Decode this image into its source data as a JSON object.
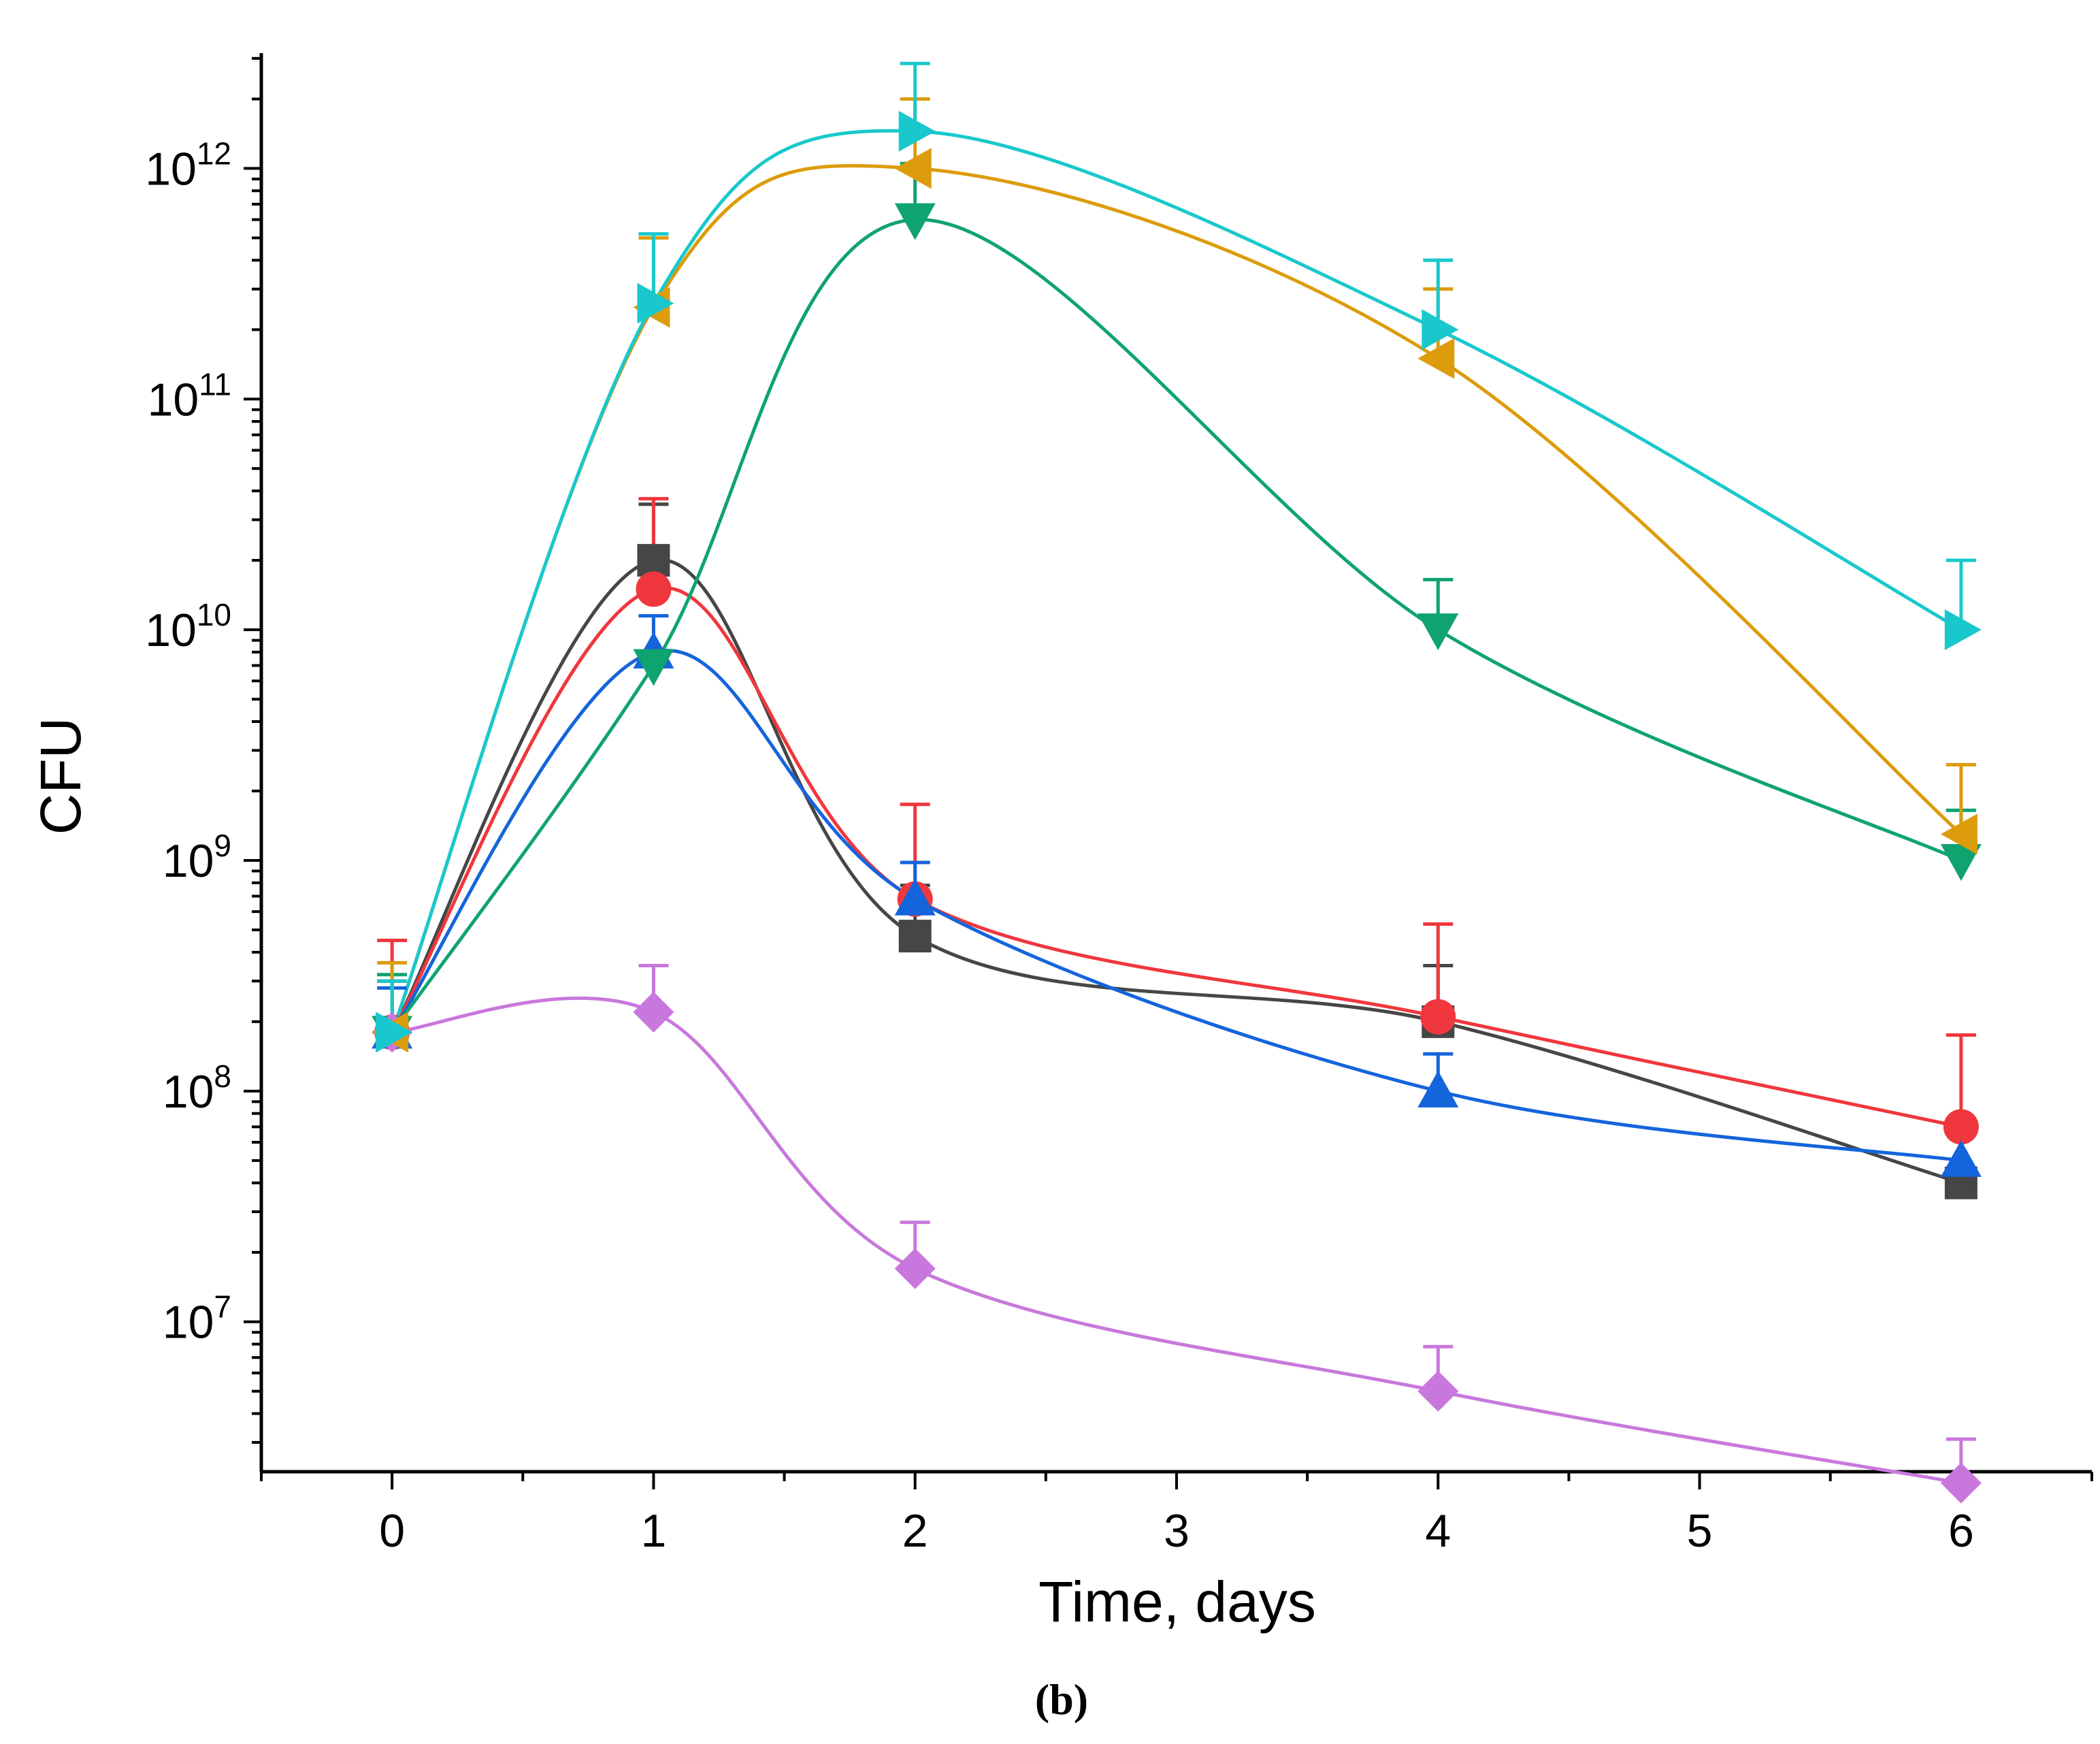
{
  "chart_data": {
    "type": "line",
    "caption": "(b)",
    "xlabel": "Time, days",
    "ylabel": "CFU",
    "xlim": [
      -0.5,
      6.5
    ],
    "ylim_log10": [
      6.35,
      12.5
    ],
    "y_scale": "log",
    "x_ticks": [
      0,
      1,
      2,
      3,
      4,
      5,
      6
    ],
    "x_tick_labels": [
      "0",
      "1",
      "2",
      "3",
      "4",
      "5",
      "6"
    ],
    "y_ticks": [
      {
        "base": "10",
        "exp": "7",
        "value": 10000000.0
      },
      {
        "base": "10",
        "exp": "8",
        "value": 100000000.0
      },
      {
        "base": "10",
        "exp": "9",
        "value": 1000000000.0
      },
      {
        "base": "10",
        "exp": "10",
        "value": 10000000000.0
      },
      {
        "base": "10",
        "exp": "11",
        "value": 100000000000.0
      },
      {
        "base": "10",
        "exp": "12",
        "value": 1000000000000.0
      }
    ],
    "grid": false,
    "x": [
      0,
      1,
      2,
      4,
      6
    ],
    "series": [
      {
        "marker": "square",
        "color": "#464646",
        "values": [
          180000000.0,
          20000000000.0,
          470000000.0,
          200000000.0,
          40000000.0
        ],
        "error_upper": [
          300000000.0,
          35000000000.0,
          780000000.0,
          350000000.0,
          null
        ]
      },
      {
        "marker": "circle",
        "color": "#f0373d",
        "values": [
          180000000.0,
          15000000000.0,
          680000000.0,
          210000000.0,
          70000000.0
        ],
        "error_upper": [
          450000000.0,
          37000000000.0,
          1750000000.0,
          530000000.0,
          175000000.0
        ]
      },
      {
        "marker": "triangle-up",
        "color": "#1464dc",
        "values": [
          180000000.0,
          8000000000.0,
          680000000.0,
          100000000.0,
          50000000.0
        ],
        "error_upper": [
          280000000.0,
          11500000000.0,
          980000000.0,
          145000000.0,
          null
        ]
      },
      {
        "marker": "triangle-down",
        "color": "#0fa370",
        "values": [
          180000000.0,
          7000000000.0,
          600000000000.0,
          10000000000.0,
          1000000000.0
        ],
        "error_upper": [
          320000000.0,
          null,
          1050000000000.0,
          16500000000.0,
          1650000000.0
        ]
      },
      {
        "marker": "diamond",
        "color": "#c878dc",
        "values": [
          180000000.0,
          220000000.0,
          17000000.0,
          5000000.0,
          2000000.0
        ],
        "error_upper": [
          null,
          350000000.0,
          27000000.0,
          7800000.0,
          3100000.0
        ]
      },
      {
        "marker": "triangle-left",
        "color": "#dc9c0b",
        "values": [
          180000000.0,
          250000000000.0,
          1000000000000.0,
          150000000000.0,
          1300000000.0
        ],
        "error_upper": [
          360000000.0,
          500000000000.0,
          2000000000000.0,
          300000000000.0,
          2600000000.0
        ]
      },
      {
        "marker": "triangle-right",
        "color": "#19c8cc",
        "values": [
          180000000.0,
          260000000000.0,
          1450000000000.0,
          200000000000.0,
          10000000000.0
        ],
        "error_upper": [
          300000000.0,
          520000000000.0,
          2850000000000.0,
          400000000000.0,
          20000000000.0
        ]
      }
    ]
  }
}
